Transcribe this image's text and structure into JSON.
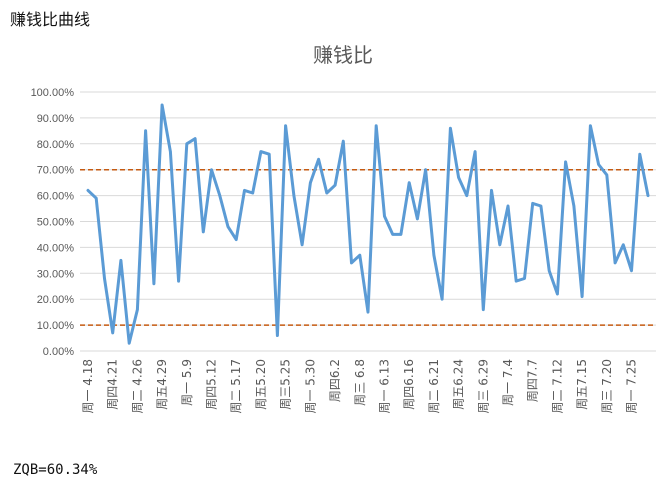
{
  "page_heading": "赚钱比曲线",
  "footer_stat": "ZQB=60.34%",
  "chart_data": {
    "type": "line",
    "title": "赚钱比",
    "xlabel": "",
    "ylabel": "",
    "ylim": [
      0,
      1
    ],
    "y_ticks": [
      "0.00%",
      "10.00%",
      "20.00%",
      "30.00%",
      "40.00%",
      "50.00%",
      "60.00%",
      "70.00%",
      "80.00%",
      "90.00%",
      "100.00%"
    ],
    "x_tick_labels": [
      "周一 4.18",
      "周四4.21",
      "周二 4.26",
      "周五4.29",
      "周一 5.9",
      "周四5.12",
      "周二 5.17",
      "周五5.20",
      "周三5.25",
      "周一 5.30",
      "周四6.2",
      "周三 6.8",
      "周一 6.13",
      "周四6.16",
      "周二 6.21",
      "周五6.24",
      "周三 6.29",
      "周一 7.4",
      "周四7.7",
      "周二 7.12",
      "周五7.15",
      "周三 7.20",
      "周一 7.25"
    ],
    "reference_lines": [
      0.7,
      0.1
    ],
    "series": [
      {
        "values": [
          0.62,
          0.59,
          0.28,
          0.07,
          0.35,
          0.03,
          0.16,
          0.85,
          0.26,
          0.95,
          0.77,
          0.27,
          0.8,
          0.82,
          0.46,
          0.7,
          0.6,
          0.48,
          0.43,
          0.62,
          0.61,
          0.77,
          0.76,
          0.06,
          0.87,
          0.6,
          0.41,
          0.65,
          0.74,
          0.61,
          0.64,
          0.81,
          0.34,
          0.37,
          0.15,
          0.87,
          0.52,
          0.45,
          0.45,
          0.65,
          0.51,
          0.7,
          0.37,
          0.2,
          0.86,
          0.67,
          0.6,
          0.77,
          0.16,
          0.62,
          0.41,
          0.56,
          0.27,
          0.28,
          0.57,
          0.56,
          0.31,
          0.22,
          0.73,
          0.56,
          0.21,
          0.87,
          0.72,
          0.68,
          0.34,
          0.41,
          0.31,
          0.76,
          0.6
        ]
      }
    ],
    "colors": {
      "line": "#5b9bd5",
      "reference": "#c55a11",
      "grid": "#d9d9d9",
      "axis_text": "#595959",
      "title": "#595959"
    },
    "grid": true,
    "legend": "none"
  }
}
